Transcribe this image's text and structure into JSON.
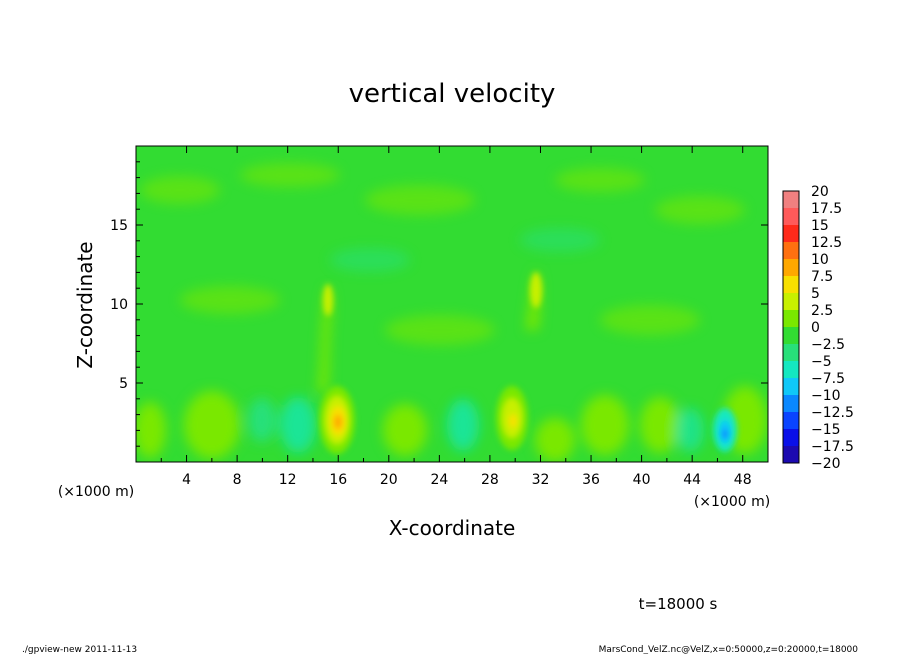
{
  "chart_data": {
    "type": "heatmap",
    "title": "vertical velocity",
    "xlabel": "X-coordinate",
    "ylabel": "Z-coordinate",
    "x_unit_label": "(×1000 m)",
    "x_unit_label_right": "(×1000 m)",
    "xlim": [
      0,
      50
    ],
    "ylim": [
      0,
      20
    ],
    "xticks": [
      "4",
      "8",
      "12",
      "16",
      "20",
      "24",
      "28",
      "32",
      "36",
      "40",
      "44",
      "48"
    ],
    "yticks": [
      "5",
      "10",
      "15"
    ],
    "colorbar": {
      "levels": [
        "20",
        "17.5",
        "15",
        "12.5",
        "10",
        "7.5",
        "5",
        "2.5",
        "0",
        "−2.5",
        "−5",
        "−7.5",
        "−10",
        "−12.5",
        "−15",
        "−17.5",
        "−20"
      ],
      "colors": [
        "#f08080",
        "#ff5a5a",
        "#ff2a1a",
        "#ff7010",
        "#ffa800",
        "#f8e000",
        "#c8f000",
        "#7ae800",
        "#32dc32",
        "#28e07a",
        "#14e8c0",
        "#10c8f8",
        "#0a88ff",
        "#0a44ff",
        "#0a10e8",
        "#1c0ab0",
        "#6614b8"
      ]
    },
    "background_value": "0 to 2.5",
    "features": [
      {
        "x": 16,
        "z": 2.7,
        "value": "7.5 to 10"
      },
      {
        "x": 30,
        "z": 2.9,
        "value": "5 to 7.5"
      },
      {
        "x": 46.3,
        "z": 1.9,
        "value": "-5 to -7.5"
      }
    ],
    "time_label": "t=18000 s"
  },
  "footer": {
    "left": "./gpview-new   2011-11-13",
    "right": "MarsCond_VelZ.nc@VelZ,x=0:50000,z=0:20000,t=18000"
  }
}
